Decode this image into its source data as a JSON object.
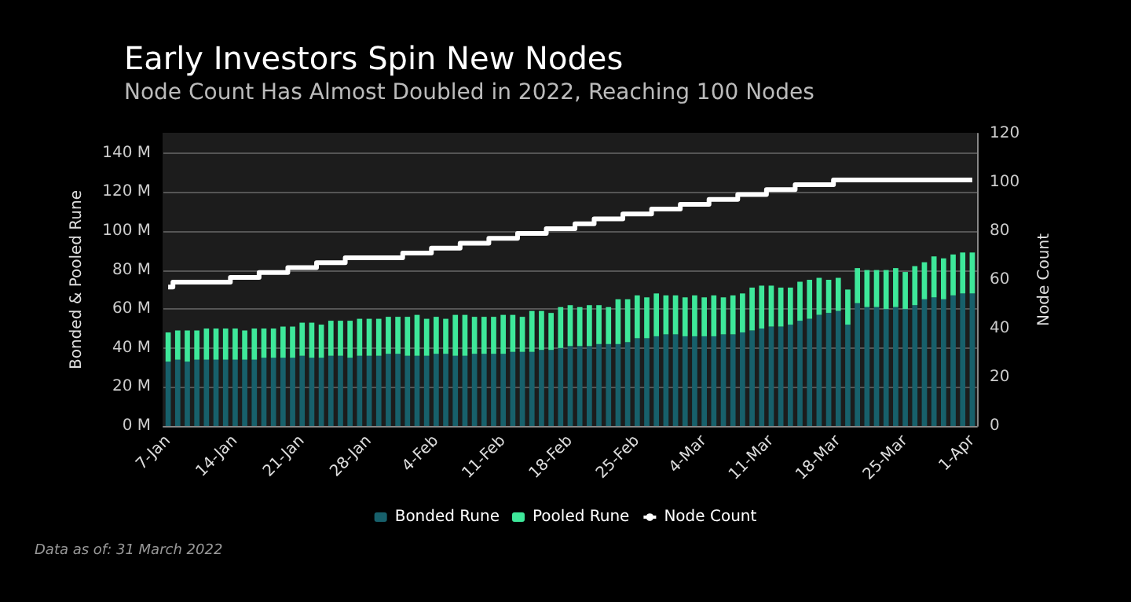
{
  "chart_data": {
    "type": "bar",
    "title": "Early Investors Spin New Nodes",
    "subtitle": "Node Count Has Almost Doubled in 2022, Reaching 100 Nodes",
    "ylabel": "Bonded & Pooled Rune",
    "y2label": "Node Count",
    "annotations": [
      "Data as of: 31 March 2022"
    ],
    "categories": [
      "7-Jan",
      null,
      null,
      null,
      null,
      null,
      null,
      "14-Jan",
      null,
      null,
      null,
      null,
      null,
      null,
      "21-Jan",
      null,
      null,
      null,
      null,
      null,
      null,
      "28-Jan",
      null,
      null,
      null,
      null,
      null,
      null,
      "4-Feb",
      null,
      null,
      null,
      null,
      null,
      null,
      "11-Feb",
      null,
      null,
      null,
      null,
      null,
      null,
      "18-Feb",
      null,
      null,
      null,
      null,
      null,
      null,
      "25-Feb",
      null,
      null,
      null,
      null,
      null,
      null,
      "4-Mar",
      null,
      null,
      null,
      null,
      null,
      null,
      "11-Mar",
      null,
      null,
      null,
      null,
      null,
      null,
      "18-Mar",
      null,
      null,
      null,
      null,
      null,
      null,
      "25-Mar",
      null,
      null,
      null,
      null,
      null,
      null,
      "1-Apr"
    ],
    "stacked": true,
    "series": [
      {
        "name": "Bonded Rune",
        "color": "#17606b",
        "values": [
          33,
          34,
          33,
          34,
          34,
          34,
          34,
          34,
          34,
          34,
          35,
          35,
          35,
          35,
          36,
          35,
          35,
          36,
          36,
          35,
          36,
          36,
          36,
          37,
          37,
          36,
          36,
          36,
          37,
          37,
          36,
          36,
          37,
          37,
          37,
          37,
          38,
          38,
          38,
          39,
          39,
          40,
          41,
          41,
          41,
          42,
          42,
          42,
          43,
          45,
          45,
          46,
          47,
          47,
          46,
          46,
          46,
          46,
          47,
          47,
          48,
          49,
          50,
          51,
          51,
          52,
          54,
          55,
          57,
          58,
          59,
          52,
          63,
          61,
          61,
          60,
          61,
          60,
          62,
          65,
          66,
          65,
          67,
          68,
          68
        ]
      },
      {
        "name": "Pooled Rune",
        "color": "#3ee89a",
        "values": [
          15,
          15,
          16,
          15,
          16,
          16,
          16,
          16,
          15,
          16,
          15,
          15,
          16,
          16,
          17,
          18,
          17,
          18,
          18,
          19,
          19,
          19,
          19,
          19,
          19,
          20,
          21,
          19,
          19,
          18,
          21,
          21,
          19,
          19,
          19,
          20,
          19,
          18,
          21,
          20,
          19,
          21,
          21,
          20,
          21,
          20,
          19,
          23,
          22,
          22,
          21,
          22,
          20,
          20,
          20,
          21,
          20,
          21,
          19,
          20,
          20,
          22,
          22,
          21,
          20,
          19,
          20,
          20,
          19,
          17,
          17,
          18,
          18,
          19,
          19,
          20,
          20,
          19,
          20,
          19,
          21,
          21,
          21,
          21,
          21
        ]
      },
      {
        "name": "Node Count",
        "type": "step",
        "axis": "y2",
        "color": "#ffffff",
        "values": [
          57,
          59,
          59,
          59,
          59,
          59,
          59,
          61,
          61,
          61,
          63,
          63,
          63,
          65,
          65,
          65,
          67,
          67,
          67,
          69,
          69,
          69,
          69,
          69,
          69,
          71,
          71,
          71,
          73,
          73,
          73,
          75,
          75,
          75,
          77,
          77,
          77,
          79,
          79,
          79,
          81,
          81,
          81,
          83,
          83,
          85,
          85,
          85,
          87,
          87,
          87,
          89,
          89,
          89,
          91,
          91,
          91,
          93,
          93,
          93,
          95,
          95,
          95,
          97,
          97,
          97,
          99,
          99,
          99,
          99,
          101,
          101,
          101,
          101,
          101,
          101,
          101,
          101,
          101,
          101,
          101,
          101,
          101,
          101,
          101
        ]
      }
    ],
    "ylim": [
      0,
      150
    ],
    "yticks": [
      {
        "value": 0,
        "label": "0 M"
      },
      {
        "value": 20,
        "label": "20 M"
      },
      {
        "value": 40,
        "label": "40 M"
      },
      {
        "value": 60,
        "label": "60 M"
      },
      {
        "value": 80,
        "label": "80 M"
      },
      {
        "value": 100,
        "label": "100 M"
      },
      {
        "value": 120,
        "label": "120 M"
      },
      {
        "value": 140,
        "label": "140 M"
      }
    ],
    "y2lim": [
      0,
      120
    ],
    "y2ticks": [
      0,
      20,
      40,
      60,
      80,
      100,
      120
    ],
    "grid": "y",
    "legend": "bottom",
    "marker": "none",
    "line_style": "solid"
  }
}
